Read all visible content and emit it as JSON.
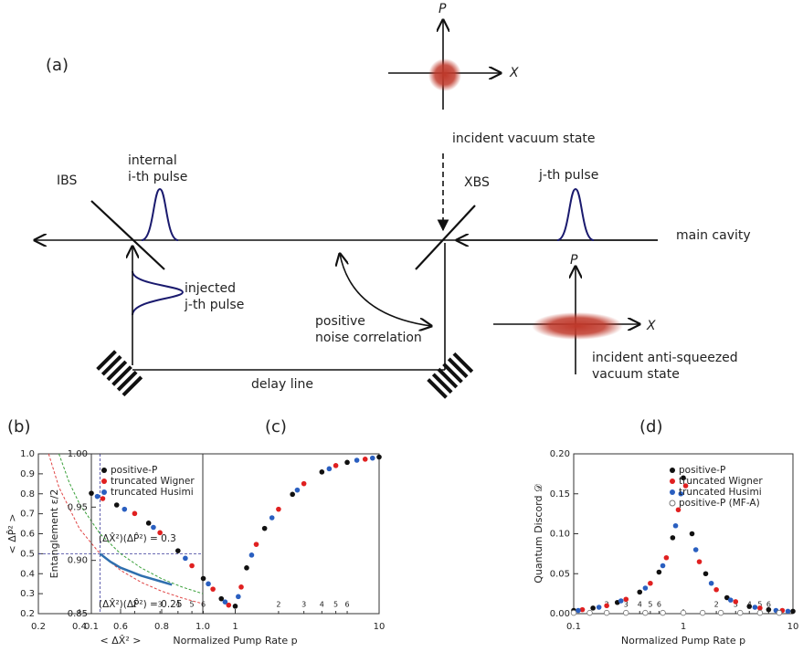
{
  "diagram": {
    "panel": "(a)",
    "top_axis_p": "P",
    "top_axis_x": "X",
    "vacuum": "incident vacuum state",
    "ibs": "IBS",
    "internal_1": "internal",
    "internal_2": "i-th pulse",
    "xbs": "XBS",
    "jpulse": "j-th pulse",
    "main_cavity": "main cavity",
    "injected_1": "injected",
    "injected_2": "j-th pulse",
    "noise_1": "positive",
    "noise_2": "noise correlation",
    "delay": "delay line",
    "bottom_axis_p": "P",
    "bottom_axis_x": "X",
    "anti_1": "incident anti-squeezed",
    "anti_2": "vacuum state"
  },
  "chart_data": [
    {
      "type": "line",
      "panel": "(b)",
      "x_label": "< ΔX̂² >",
      "y_label": "< ΔP̂² >",
      "xlim": [
        0.2,
        1.0
      ],
      "ylim": [
        0.2,
        1.0
      ],
      "xticks": [
        0.2,
        0.4,
        0.6,
        0.8,
        {
          "value": 1,
          "label": "1.0"
        }
      ],
      "yticks": [
        0.2,
        0.3,
        0.4,
        0.5,
        0.6,
        0.7,
        0.8,
        0.9,
        {
          "value": 1,
          "label": "1.0"
        }
      ],
      "ref_lines": {
        "x": [
          0.5
        ],
        "y": [
          0.5
        ],
        "color": "#3a3a9a"
      },
      "annotations": [
        {
          "text": "(ΔX̂²)(ΔP̂²) = 0.3",
          "color": "#2e9a2e"
        },
        {
          "text": "(ΔX̂²)(ΔP̂²) = 0.25",
          "color": "#d93a3a"
        }
      ],
      "series": [
        {
          "color": "#3aa03a",
          "style": "dashed",
          "x": [
            0.3,
            0.35,
            0.4,
            0.5,
            0.6,
            0.7,
            0.8,
            0.9,
            1.0
          ],
          "values": [
            1.0,
            0.857,
            0.75,
            0.6,
            0.5,
            0.429,
            0.375,
            0.333,
            0.3
          ]
        },
        {
          "color": "#e04545",
          "style": "dashed",
          "x": [
            0.25,
            0.3,
            0.4,
            0.5,
            0.6,
            0.7,
            0.8,
            0.9,
            1.0
          ],
          "values": [
            1.0,
            0.833,
            0.625,
            0.5,
            0.417,
            0.357,
            0.3125,
            0.278,
            0.25
          ]
        },
        {
          "color": "#2f6fae",
          "style": "solid",
          "x": [
            0.5,
            0.55,
            0.6,
            0.7,
            0.8,
            0.85
          ],
          "values": [
            0.5,
            0.46,
            0.43,
            0.39,
            0.36,
            0.345
          ]
        }
      ]
    },
    {
      "type": "scatter",
      "panel": "(c)",
      "x_label": "Normalized Pump Rate p",
      "y_label": "Entanglement ε/2",
      "xlog": true,
      "xlim": [
        0.1,
        10
      ],
      "ylim": [
        0.85,
        1.0
      ],
      "xticks": [
        0.1,
        1,
        10
      ],
      "xminor": [
        {
          "value": 0.2,
          "label": "2"
        },
        {
          "value": 0.3,
          "label": "3"
        },
        {
          "value": 0.4,
          "label": "4"
        },
        {
          "value": 0.5,
          "label": "5"
        },
        {
          "value": 0.6,
          "label": "6"
        },
        2,
        3,
        4,
        5,
        6
      ],
      "yticks": [
        0.85,
        {
          "value": 0.9,
          "label": "0.90"
        },
        0.95,
        {
          "value": 1,
          "label": "1.00"
        }
      ],
      "series": [
        {
          "name": "positive-P",
          "color": "#111111",
          "style": "filled",
          "x": [
            0.1,
            0.15,
            0.25,
            0.4,
            0.6,
            0.8,
            1.0,
            1.2,
            1.6,
            2.5,
            4,
            6,
            10
          ],
          "values": [
            0.963,
            0.952,
            0.935,
            0.909,
            0.883,
            0.864,
            0.857,
            0.893,
            0.93,
            0.962,
            0.983,
            0.992,
            0.997
          ]
        },
        {
          "name": "truncated Wigner",
          "color": "#e02020",
          "style": "filled",
          "x": [
            0.12,
            0.2,
            0.3,
            0.5,
            0.7,
            0.9,
            1.1,
            1.4,
            2,
            3,
            5,
            8
          ],
          "values": [
            0.958,
            0.944,
            0.926,
            0.895,
            0.873,
            0.858,
            0.875,
            0.915,
            0.948,
            0.972,
            0.989,
            0.995
          ]
        },
        {
          "name": "truncated Husimi",
          "color": "#2a5fc0",
          "style": "filled",
          "x": [
            0.11,
            0.17,
            0.27,
            0.45,
            0.65,
            0.85,
            1.05,
            1.3,
            1.8,
            2.7,
            4.5,
            7,
            9
          ],
          "values": [
            0.96,
            0.948,
            0.931,
            0.902,
            0.878,
            0.861,
            0.866,
            0.905,
            0.94,
            0.966,
            0.986,
            0.994,
            0.996
          ]
        }
      ]
    },
    {
      "type": "scatter",
      "panel": "(d)",
      "x_label": "Normalized Pump Rate p",
      "y_label": "Quantum Discord 𝒟",
      "xlog": true,
      "xlim": [
        0.1,
        10
      ],
      "ylim": [
        0,
        0.2
      ],
      "xticks": [
        0.1,
        1,
        10
      ],
      "xminor": [
        {
          "value": 0.2,
          "label": "2"
        },
        {
          "value": 0.3,
          "label": "3"
        },
        {
          "value": 0.4,
          "label": "4"
        },
        {
          "value": 0.5,
          "label": "5"
        },
        {
          "value": 0.6,
          "label": "6"
        },
        2,
        3,
        4,
        5,
        6
      ],
      "yticks": [
        {
          "value": 0,
          "label": "0.00"
        },
        0.05,
        {
          "value": 0.1,
          "label": "0.10"
        },
        0.15,
        {
          "value": 0.2,
          "label": "0.20"
        }
      ],
      "series": [
        {
          "name": "positive-P",
          "color": "#111111",
          "style": "filled",
          "x": [
            0.1,
            0.15,
            0.25,
            0.4,
            0.6,
            0.8,
            1.0,
            1.2,
            1.6,
            2.5,
            4,
            6,
            10
          ],
          "values": [
            0.004,
            0.007,
            0.014,
            0.027,
            0.052,
            0.095,
            0.17,
            0.1,
            0.05,
            0.02,
            0.009,
            0.005,
            0.003
          ]
        },
        {
          "name": "truncated Wigner",
          "color": "#e02020",
          "style": "filled",
          "x": [
            0.12,
            0.2,
            0.3,
            0.5,
            0.7,
            0.9,
            1.05,
            1.4,
            2,
            3,
            5,
            8
          ],
          "values": [
            0.005,
            0.01,
            0.018,
            0.038,
            0.07,
            0.13,
            0.16,
            0.065,
            0.03,
            0.015,
            0.007,
            0.004
          ]
        },
        {
          "name": "truncated Husimi",
          "color": "#2a5fc0",
          "style": "filled",
          "x": [
            0.11,
            0.17,
            0.27,
            0.45,
            0.65,
            0.85,
            0.95,
            1.3,
            1.8,
            2.7,
            4.5,
            7,
            9
          ],
          "values": [
            0.004,
            0.008,
            0.016,
            0.032,
            0.06,
            0.11,
            0.15,
            0.08,
            0.038,
            0.017,
            0.008,
            0.004,
            0.003
          ]
        },
        {
          "name": "positive-P (MF-A)",
          "color": "#777777",
          "style": "open",
          "x": [
            0.1,
            0.14,
            0.2,
            0.3,
            0.45,
            0.65,
            1.0,
            1.5,
            2.2,
            3.3,
            5,
            7.5
          ],
          "values": [
            0.001,
            0.001,
            0.001,
            0.001,
            0.001,
            0.001,
            0.001,
            0.001,
            0.001,
            0.001,
            0.001,
            0.001
          ]
        }
      ]
    }
  ]
}
